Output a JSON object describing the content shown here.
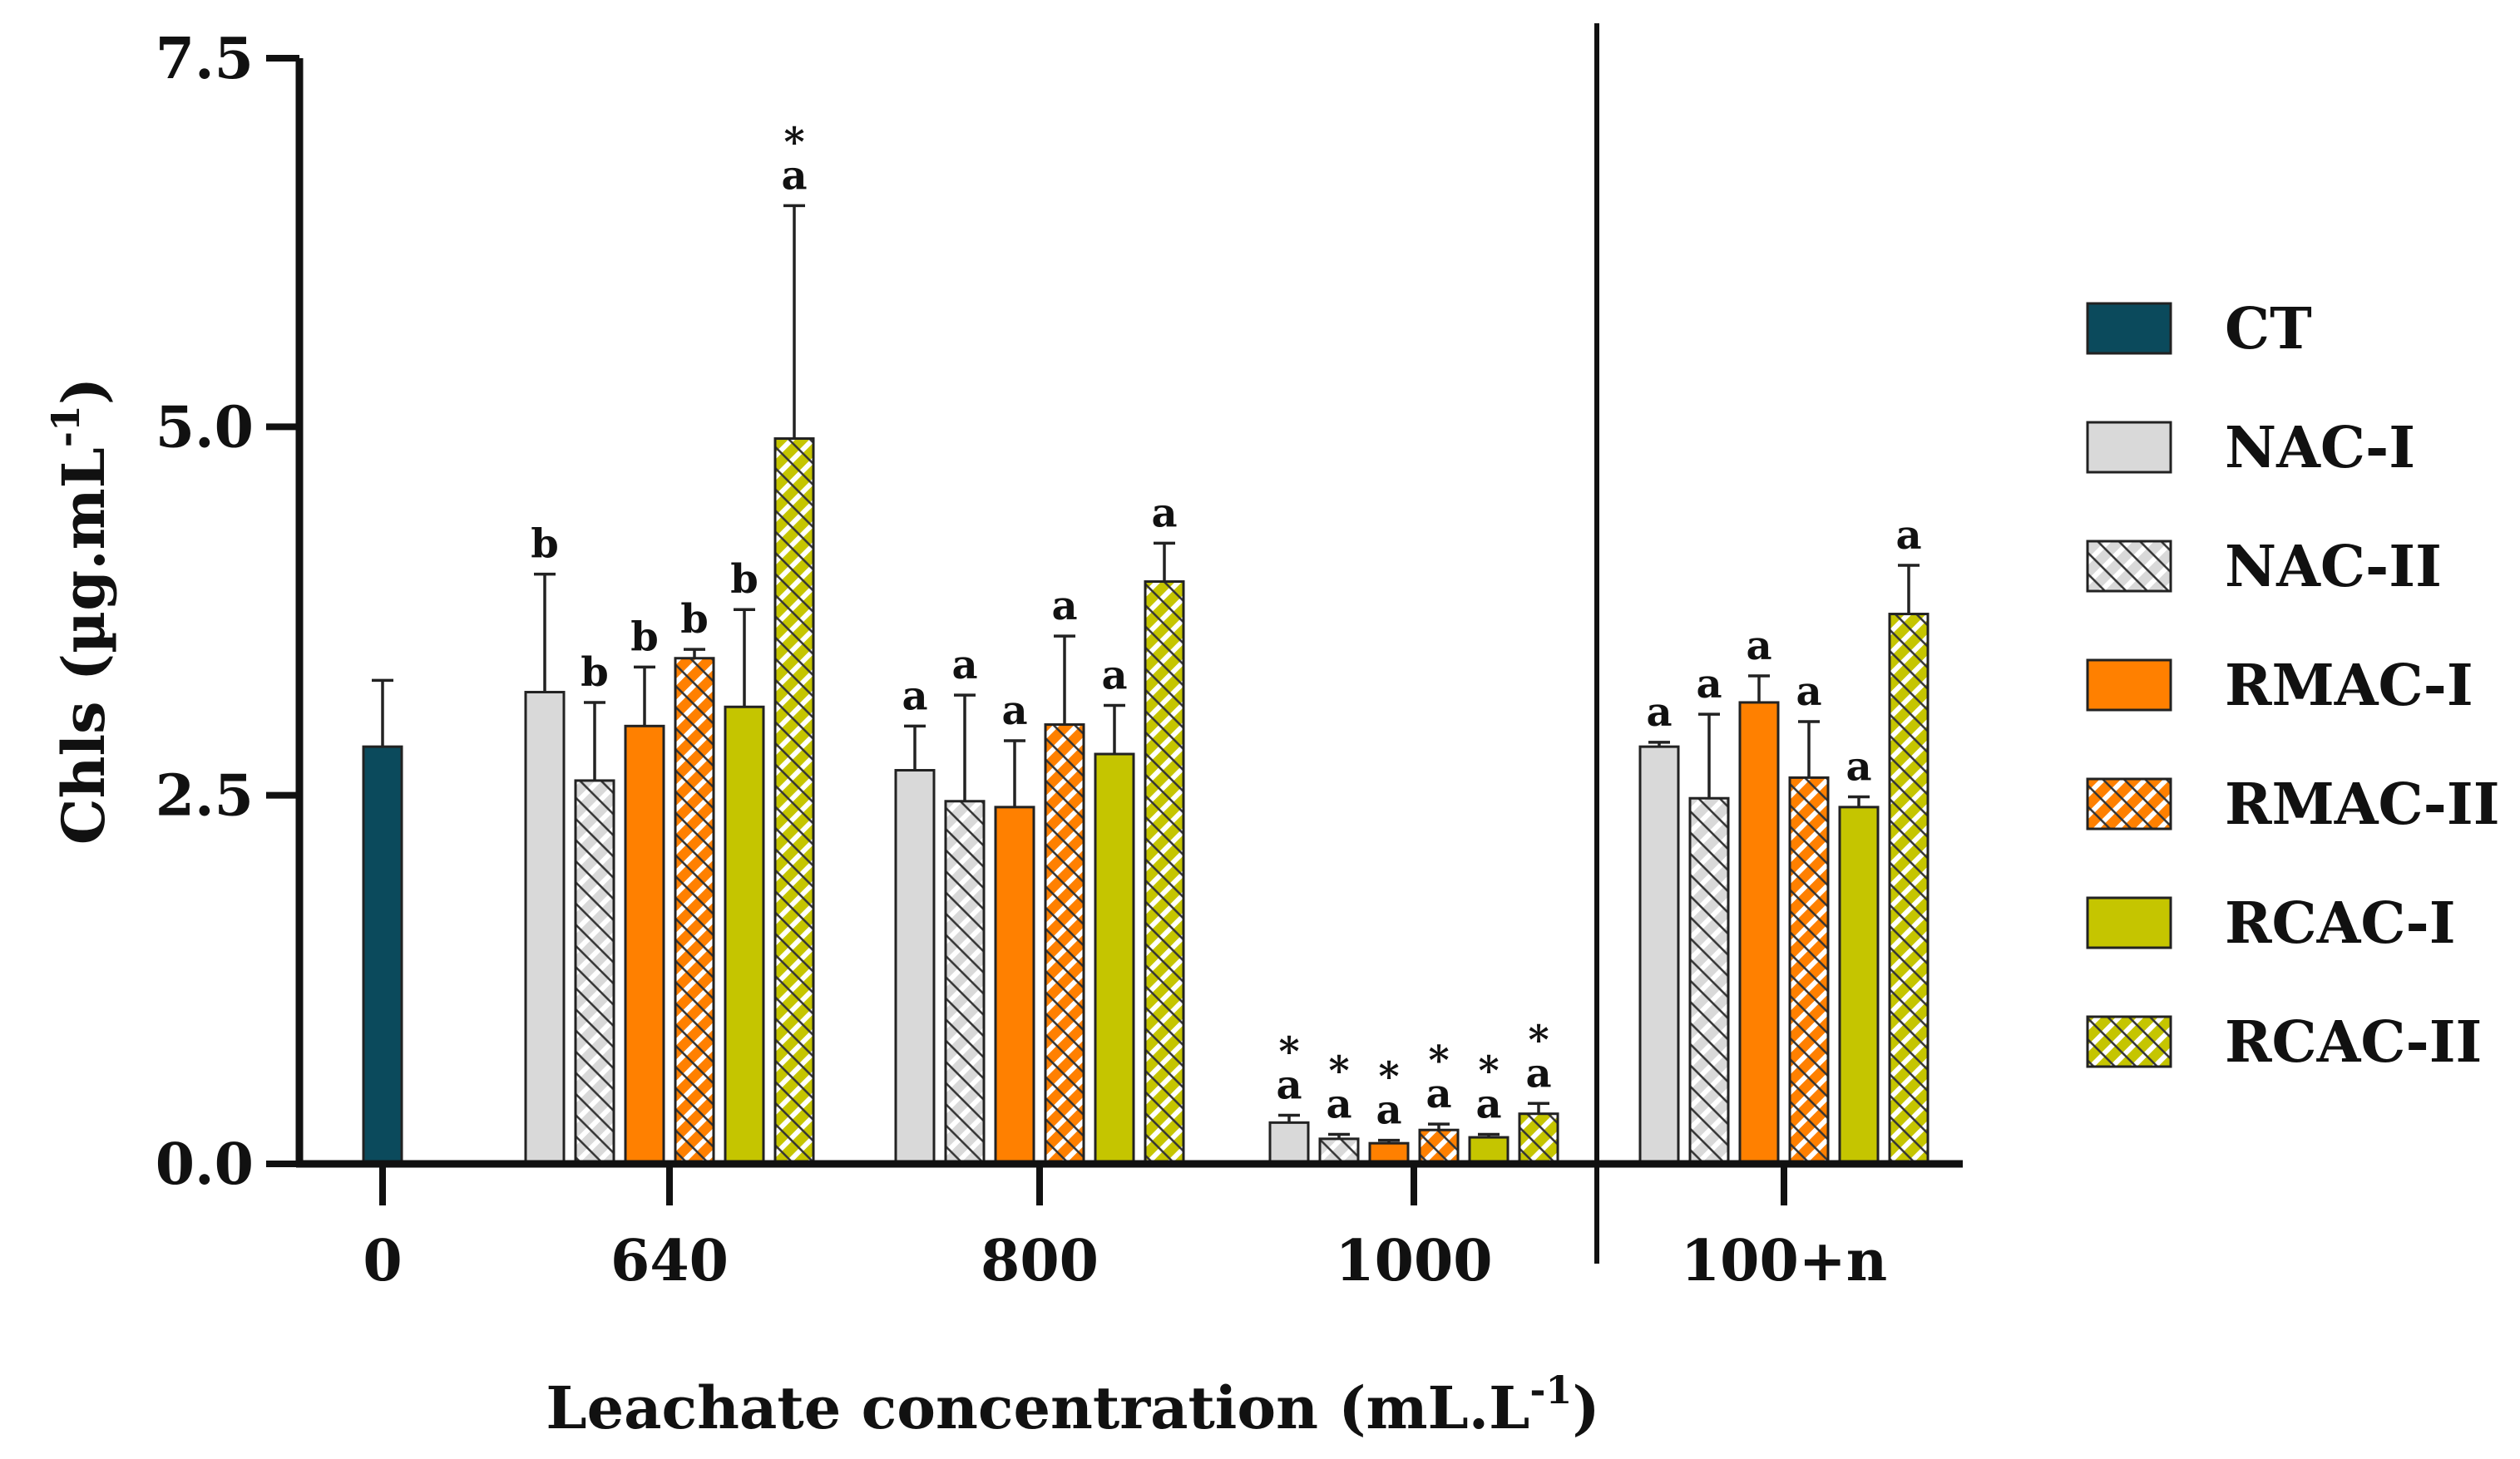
{
  "chart_data": {
    "type": "bar",
    "title": "",
    "ylabel": "Chls (µg.mL",
    "ylabel_sup": "-1",
    "ylabel_close": ")",
    "xlabel": "Leachate concentration (mL.L",
    "xlabel_sup": "-1",
    "xlabel_close": ")",
    "ylim": [
      0,
      7.5
    ],
    "yticks": [
      0.0,
      2.5,
      5.0,
      7.5
    ],
    "ytick_labels": [
      "0.0",
      "2.5",
      "5.0",
      "7.5"
    ],
    "categories": [
      "0",
      "640",
      "800",
      "1000",
      "100+n"
    ],
    "legend_position": "right",
    "series": [
      {
        "name": "CT",
        "color": "#0b4a5c",
        "pattern": "solid",
        "values": [
          2.83,
          null,
          null,
          null,
          null
        ],
        "errors": [
          0.45,
          null,
          null,
          null,
          null
        ],
        "labels": [
          "",
          "",
          "",
          "",
          ""
        ]
      },
      {
        "name": "NAC-I",
        "color": "#d9d9d9",
        "pattern": "solid",
        "values": [
          null,
          3.2,
          2.67,
          0.28,
          2.83
        ],
        "errors": [
          null,
          0.8,
          0.3,
          0.05,
          0.03
        ],
        "labels": [
          "",
          "b",
          "a",
          "*\na",
          "a"
        ]
      },
      {
        "name": "NAC-II",
        "color": "#d9d9d9",
        "pattern": "hatch",
        "values": [
          null,
          2.6,
          2.46,
          0.17,
          2.48
        ],
        "errors": [
          null,
          0.53,
          0.72,
          0.03,
          0.57
        ],
        "labels": [
          "",
          "b",
          "a",
          "*\na",
          "a"
        ]
      },
      {
        "name": "RMAC-I",
        "color": "#ff8000",
        "pattern": "solid",
        "values": [
          null,
          2.97,
          2.42,
          0.14,
          3.13
        ],
        "errors": [
          null,
          0.4,
          0.45,
          0.02,
          0.18
        ],
        "labels": [
          "",
          "b",
          "a",
          "*\na",
          "a"
        ]
      },
      {
        "name": "RMAC-II",
        "color": "#ff8000",
        "pattern": "hatch",
        "values": [
          null,
          3.43,
          2.98,
          0.23,
          2.62
        ],
        "errors": [
          null,
          0.06,
          0.6,
          0.04,
          0.38
        ],
        "labels": [
          "",
          "b",
          "a",
          "*\na",
          "a"
        ]
      },
      {
        "name": "RCAC-I",
        "color": "#c5c500",
        "pattern": "solid",
        "values": [
          null,
          3.1,
          2.78,
          0.18,
          2.42
        ],
        "errors": [
          null,
          0.66,
          0.33,
          0.02,
          0.07
        ],
        "labels": [
          "",
          "b",
          "a",
          "*\na",
          "a"
        ]
      },
      {
        "name": "RCAC-II",
        "color": "#c5c500",
        "pattern": "hatch",
        "values": [
          null,
          4.92,
          3.95,
          0.34,
          3.73
        ],
        "errors": [
          null,
          1.58,
          0.26,
          0.07,
          0.33
        ],
        "labels": [
          "",
          "*\na",
          "a",
          "*\na",
          "a"
        ]
      }
    ]
  }
}
